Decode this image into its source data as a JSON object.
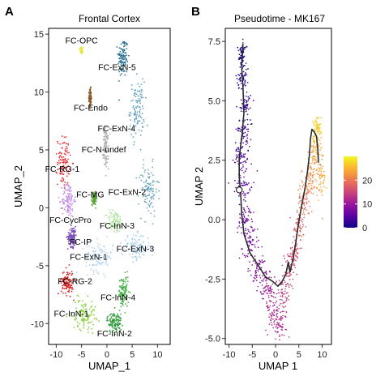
{
  "figure": {
    "panel_a_letter": "A",
    "panel_b_letter": "B"
  },
  "chart_data": [
    {
      "type": "scatter",
      "title": "Frontal Cortex",
      "xlabel": "UMAP_1",
      "ylabel": "UMAP_2",
      "xlim": [
        -11.5,
        12.5
      ],
      "ylim": [
        -11.8,
        15.5
      ],
      "xticks": [
        "-10",
        "-5",
        "0",
        "5",
        "10"
      ],
      "yticks": [
        "-10",
        "-5",
        "0",
        "5",
        "10",
        "15"
      ],
      "xtick_values": [
        -10,
        -5,
        0,
        5,
        10
      ],
      "ytick_values": [
        -10,
        -5,
        0,
        5,
        10,
        15
      ],
      "grid": false,
      "legend": "none",
      "clusters": [
        {
          "label": "FC-OPC",
          "x": -5.0,
          "y": 13.6,
          "label_x": -5.0,
          "label_y": 14.2,
          "color": "#e8e84a",
          "spread": [
            0.2,
            0.3
          ]
        },
        {
          "label": "FC-ExN-5",
          "x": 3.2,
          "y": 13.0,
          "label_x": 2.0,
          "label_y": 11.9,
          "color": "#2a6f95",
          "spread": [
            0.9,
            1.6
          ]
        },
        {
          "label": "FC-Endo",
          "x": -3.3,
          "y": 9.5,
          "label_x": -3.2,
          "label_y": 8.4,
          "color": "#8b5a2b",
          "spread": [
            0.2,
            0.7
          ]
        },
        {
          "label": "FC-ExN-4",
          "x": 6.0,
          "y": 8.5,
          "label_x": 1.9,
          "label_y": 6.6,
          "color": "#5fa3bf",
          "spread": [
            1.3,
            2.2
          ]
        },
        {
          "label": "FC-N-undef",
          "x": -0.2,
          "y": 5.2,
          "label_x": -0.6,
          "label_y": 4.8,
          "color": "#b0b0b0",
          "spread": [
            0.5,
            1.6
          ]
        },
        {
          "label": "FC-RG-1",
          "x": -8.5,
          "y": 4.0,
          "label_x": -8.8,
          "label_y": 3.1,
          "color": "#e8383d",
          "spread": [
            1.1,
            1.9
          ]
        },
        {
          "label": "FC-MG",
          "x": -2.5,
          "y": 0.8,
          "label_x": -3.3,
          "label_y": 0.9,
          "color": "#5aa63a",
          "spread": [
            0.4,
            0.5
          ]
        },
        {
          "label": "FC-ExN-2",
          "x": 8.2,
          "y": 1.5,
          "label_x": 4.0,
          "label_y": 1.1,
          "color": "#6fa8bf",
          "spread": [
            1.7,
            2.0
          ]
        },
        {
          "label": "FC-CycPro",
          "x": -7.6,
          "y": 0.7,
          "label_x": -7.2,
          "label_y": -1.3,
          "color": "#c28ee8",
          "spread": [
            1.1,
            1.4
          ]
        },
        {
          "label": "FC-InN-3",
          "x": 1.6,
          "y": -1.2,
          "label_x": 2.0,
          "label_y": -1.8,
          "color": "#b8e6a8",
          "spread": [
            1.5,
            0.9
          ]
        },
        {
          "label": "FC-IP",
          "x": -6.8,
          "y": -2.5,
          "label_x": -5.2,
          "label_y": -3.2,
          "color": "#7a4fb8",
          "spread": [
            0.8,
            0.8
          ]
        },
        {
          "label": "FC-ExN-1",
          "x": -1.5,
          "y": -4.2,
          "label_x": -3.6,
          "label_y": -4.5,
          "color": "#b6d4f0",
          "spread": [
            2.5,
            1.2
          ]
        },
        {
          "label": "FC-ExN-3",
          "x": 5.8,
          "y": -3.4,
          "label_x": 5.6,
          "label_y": -3.8,
          "color": "#a8d0e8",
          "spread": [
            2.5,
            1.0
          ]
        },
        {
          "label": "FC-RG-2",
          "x": -7.8,
          "y": -6.4,
          "label_x": -6.3,
          "label_y": -6.6,
          "color": "#d82020",
          "spread": [
            1.1,
            1.0
          ]
        },
        {
          "label": "FC-InN-4",
          "x": 3.3,
          "y": -7.3,
          "label_x": 2.2,
          "label_y": -8.0,
          "color": "#44b244",
          "spread": [
            0.9,
            1.3
          ]
        },
        {
          "label": "FC-InN-1",
          "x": -4.5,
          "y": -9.2,
          "label_x": -7.0,
          "label_y": -9.4,
          "color": "#8ad03a",
          "spread": [
            2.1,
            1.2
          ]
        },
        {
          "label": "FC-InN-2",
          "x": 1.5,
          "y": -9.9,
          "label_x": 1.5,
          "label_y": -11.1,
          "color": "#2e9a3a",
          "spread": [
            1.3,
            0.8
          ]
        }
      ]
    },
    {
      "type": "scatter",
      "title": "Pseudotime - MK167",
      "xlabel": "UMAP 1",
      "ylabel": "UMAP 2",
      "xlim": [
        -10.8,
        12.0
      ],
      "ylim": [
        -5.25,
        8.05
      ],
      "xticks": [
        "-10",
        "-5",
        "0",
        "5",
        "10"
      ],
      "yticks": [
        "-5.0",
        "-2.5",
        "0.0",
        "2.5",
        "5.0",
        "7.5"
      ],
      "xtick_values": [
        -10,
        -5,
        0,
        5,
        10
      ],
      "ytick_values": [
        -5,
        -2.5,
        0,
        2.5,
        5,
        7.5
      ],
      "grid": false,
      "legend": "right",
      "color_scale": {
        "min": 0,
        "max": 30,
        "ticks": [
          "0",
          "10",
          "20"
        ],
        "tick_values": [
          0,
          10,
          20
        ],
        "colors": [
          "#0d0887",
          "#5b02a3",
          "#9a179b",
          "#cb4678",
          "#eb7852",
          "#fbb32f",
          "#f0f921"
        ]
      },
      "trajectory": [
        [
          -7.0,
          7.4
        ],
        [
          -7.3,
          6.5
        ],
        [
          -7.0,
          5.6
        ],
        [
          -6.8,
          4.5
        ],
        [
          -7.2,
          3.6
        ],
        [
          -7.8,
          2.6
        ],
        [
          -7.8,
          1.8
        ],
        [
          -7.5,
          1.1
        ],
        [
          -7.3,
          0.3
        ],
        [
          -6.8,
          -0.6
        ],
        [
          -5.5,
          -1.4
        ],
        [
          -3.8,
          -1.9
        ],
        [
          -2.2,
          -2.4
        ],
        [
          -0.6,
          -2.6
        ],
        [
          0.5,
          -2.8
        ],
        [
          1.4,
          -2.6
        ],
        [
          2.2,
          -2.3
        ],
        [
          2.7,
          -1.8
        ],
        [
          3.1,
          -2.2
        ],
        [
          3.8,
          -1.6
        ],
        [
          4.3,
          -1.0
        ],
        [
          4.9,
          -0.2
        ],
        [
          5.6,
          0.6
        ],
        [
          6.3,
          1.3
        ],
        [
          6.9,
          2.1
        ],
        [
          7.3,
          2.8
        ],
        [
          7.5,
          3.4
        ],
        [
          7.8,
          3.8
        ],
        [
          8.3,
          3.7
        ],
        [
          8.8,
          3.5
        ],
        [
          9.1,
          2.9
        ],
        [
          9.2,
          2.4
        ]
      ],
      "root": {
        "x": -7.8,
        "y": 1.25
      },
      "point_band": [
        {
          "x": -7.2,
          "y": 7.0,
          "sx": 0.6,
          "sy": 0.4,
          "t": 0.5
        },
        {
          "x": -7.1,
          "y": 6.0,
          "sx": 0.8,
          "sy": 0.5,
          "t": 1.5
        },
        {
          "x": -6.6,
          "y": 4.8,
          "sx": 1.1,
          "sy": 0.6,
          "t": 2.5
        },
        {
          "x": -6.8,
          "y": 3.7,
          "sx": 1.3,
          "sy": 0.5,
          "t": 3.0
        },
        {
          "x": -7.4,
          "y": 2.6,
          "sx": 1.4,
          "sy": 0.5,
          "t": 4.0
        },
        {
          "x": -7.2,
          "y": 1.4,
          "sx": 1.5,
          "sy": 0.5,
          "t": 5.0
        },
        {
          "x": -6.7,
          "y": 0.1,
          "sx": 1.4,
          "sy": 0.6,
          "t": 6.0
        },
        {
          "x": -5.4,
          "y": -1.0,
          "sx": 1.3,
          "sy": 0.6,
          "t": 7.0
        },
        {
          "x": -3.8,
          "y": -2.0,
          "sx": 1.4,
          "sy": 0.7,
          "t": 8.5
        },
        {
          "x": -2.0,
          "y": -2.9,
          "sx": 1.6,
          "sy": 0.7,
          "t": 10.0
        },
        {
          "x": -0.5,
          "y": -3.6,
          "sx": 1.5,
          "sy": 0.7,
          "t": 11.5
        },
        {
          "x": 0.5,
          "y": -4.4,
          "sx": 1.4,
          "sy": 0.5,
          "t": 12.0
        },
        {
          "x": 1.6,
          "y": -3.3,
          "sx": 1.3,
          "sy": 0.8,
          "t": 13.5
        },
        {
          "x": 2.8,
          "y": -2.3,
          "sx": 1.0,
          "sy": 0.7,
          "t": 15.0
        },
        {
          "x": 4.0,
          "y": -1.3,
          "sx": 0.9,
          "sy": 0.6,
          "t": 16.5
        },
        {
          "x": 5.0,
          "y": -0.3,
          "sx": 0.9,
          "sy": 0.6,
          "t": 18.0
        },
        {
          "x": 6.0,
          "y": 0.7,
          "sx": 1.0,
          "sy": 0.6,
          "t": 19.5
        },
        {
          "x": 7.1,
          "y": 1.6,
          "sx": 1.1,
          "sy": 0.6,
          "t": 21.0
        },
        {
          "x": 8.2,
          "y": 2.4,
          "sx": 1.0,
          "sy": 0.7,
          "t": 23.0
        },
        {
          "x": 8.8,
          "y": 3.2,
          "sx": 0.9,
          "sy": 0.7,
          "t": 25.0
        },
        {
          "x": 8.9,
          "y": 3.9,
          "sx": 0.7,
          "sy": 0.4,
          "t": 27.0
        },
        {
          "x": 9.6,
          "y": 2.0,
          "sx": 0.8,
          "sy": 0.9,
          "t": 24.0
        }
      ]
    }
  ]
}
